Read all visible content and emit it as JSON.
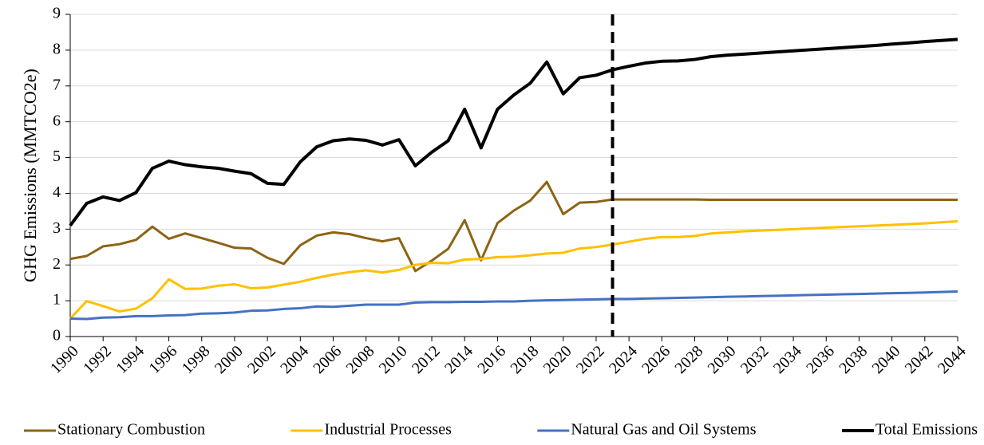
{
  "chart_data": {
    "type": "line",
    "y_label": "GHG Emissions (MMTCO2e)",
    "x": [
      1990,
      1991,
      1992,
      1993,
      1994,
      1995,
      1996,
      1997,
      1998,
      1999,
      2000,
      2001,
      2002,
      2003,
      2004,
      2005,
      2006,
      2007,
      2008,
      2009,
      2010,
      2011,
      2012,
      2013,
      2014,
      2015,
      2016,
      2017,
      2018,
      2019,
      2020,
      2021,
      2022,
      2023,
      2024,
      2025,
      2026,
      2027,
      2028,
      2029,
      2030,
      2031,
      2032,
      2033,
      2034,
      2035,
      2036,
      2037,
      2038,
      2039,
      2040,
      2041,
      2042,
      2043,
      2044
    ],
    "xlim": [
      1990,
      2044
    ],
    "xticks": [
      1990,
      1992,
      1994,
      1996,
      1998,
      2000,
      2002,
      2004,
      2006,
      2008,
      2010,
      2012,
      2014,
      2016,
      2018,
      2020,
      2022,
      2024,
      2026,
      2028,
      2030,
      2032,
      2034,
      2036,
      2038,
      2040,
      2042,
      2044
    ],
    "ylim": [
      0,
      9
    ],
    "yticks": [
      0,
      1,
      2,
      3,
      4,
      5,
      6,
      7,
      8,
      9
    ],
    "grid": true,
    "legend": "bottom",
    "vline_x": 2023,
    "series": [
      {
        "name": "Stationary Combustion",
        "color": "#8c6414",
        "values": [
          2.17,
          2.25,
          2.52,
          2.58,
          2.7,
          3.07,
          2.73,
          2.88,
          2.75,
          2.62,
          2.48,
          2.46,
          2.2,
          2.03,
          2.55,
          2.82,
          2.91,
          2.86,
          2.75,
          2.66,
          2.75,
          1.83,
          2.12,
          2.45,
          3.25,
          2.13,
          3.17,
          3.52,
          3.8,
          4.32,
          3.42,
          3.74,
          3.76,
          3.83,
          3.83,
          3.83,
          3.83,
          3.83,
          3.83,
          3.82,
          3.82,
          3.82,
          3.82,
          3.82,
          3.82,
          3.82,
          3.82,
          3.82,
          3.82,
          3.82,
          3.82,
          3.82,
          3.82,
          3.82,
          3.82
        ]
      },
      {
        "name": "Industrial Processes",
        "color": "#ffc000",
        "values": [
          0.5,
          0.99,
          0.85,
          0.7,
          0.78,
          1.07,
          1.6,
          1.33,
          1.34,
          1.42,
          1.46,
          1.35,
          1.37,
          1.45,
          1.53,
          1.64,
          1.73,
          1.8,
          1.85,
          1.79,
          1.86,
          2.0,
          2.06,
          2.05,
          2.15,
          2.17,
          2.22,
          2.23,
          2.27,
          2.32,
          2.34,
          2.46,
          2.5,
          2.57,
          2.65,
          2.73,
          2.78,
          2.78,
          2.81,
          2.88,
          2.91,
          2.94,
          2.96,
          2.98,
          3.0,
          3.02,
          3.04,
          3.06,
          3.08,
          3.1,
          3.12,
          3.14,
          3.16,
          3.19,
          3.22
        ]
      },
      {
        "name": "Natural Gas and Oil Systems",
        "color": "#4472c4",
        "values": [
          0.5,
          0.49,
          0.53,
          0.54,
          0.57,
          0.57,
          0.59,
          0.6,
          0.64,
          0.65,
          0.67,
          0.72,
          0.73,
          0.77,
          0.79,
          0.84,
          0.83,
          0.86,
          0.89,
          0.89,
          0.89,
          0.95,
          0.96,
          0.96,
          0.97,
          0.97,
          0.98,
          0.98,
          1.0,
          1.01,
          1.02,
          1.03,
          1.04,
          1.05,
          1.05,
          1.06,
          1.07,
          1.08,
          1.09,
          1.1,
          1.11,
          1.12,
          1.13,
          1.14,
          1.15,
          1.16,
          1.17,
          1.18,
          1.19,
          1.2,
          1.21,
          1.22,
          1.23,
          1.245,
          1.26
        ]
      },
      {
        "name": "Total Emissions",
        "color": "#000000",
        "values": [
          3.1,
          3.72,
          3.9,
          3.8,
          4.02,
          4.7,
          4.9,
          4.8,
          4.74,
          4.7,
          4.62,
          4.55,
          4.28,
          4.25,
          4.88,
          5.3,
          5.47,
          5.52,
          5.48,
          5.35,
          5.5,
          4.77,
          5.15,
          5.47,
          6.35,
          5.27,
          6.35,
          6.75,
          7.08,
          7.67,
          6.78,
          7.23,
          7.3,
          7.45,
          7.55,
          7.64,
          7.69,
          7.7,
          7.74,
          7.82,
          7.86,
          7.89,
          7.92,
          7.95,
          7.98,
          8.01,
          8.04,
          8.07,
          8.1,
          8.13,
          8.17,
          8.2,
          8.24,
          8.27,
          8.3
        ]
      }
    ]
  }
}
